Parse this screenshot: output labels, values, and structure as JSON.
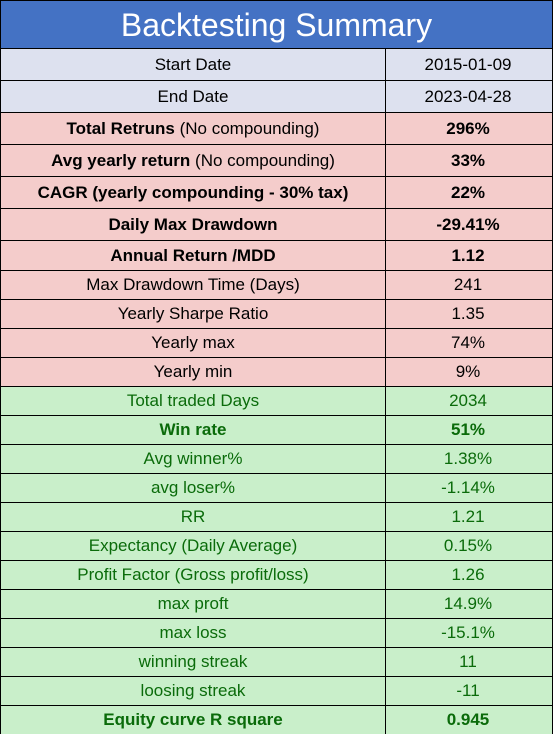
{
  "title": "Backtesting Summary",
  "rows": [
    {
      "label": "Start Date",
      "value": "2015-01-09"
    },
    {
      "label": "End Date",
      "value": "2023-04-28"
    },
    {
      "label_bold": "Total Retruns",
      "label_normal": " (No compounding)",
      "value": "296%"
    },
    {
      "label_bold": "Avg yearly return",
      "label_normal": " (No compounding)",
      "value": "33%"
    },
    {
      "label_bold": "CAGR (yearly compounding - 30% tax)",
      "label_normal": "",
      "value": "22%"
    },
    {
      "label_bold": "Daily Max Drawdown",
      "label_normal": "",
      "value": "-29.41%"
    },
    {
      "label_bold": "Annual Return /MDD",
      "label_normal": "",
      "value": "1.12"
    },
    {
      "label": "Max Drawdown Time (Days)",
      "value": "241"
    },
    {
      "label": "Yearly Sharpe Ratio",
      "value": "1.35"
    },
    {
      "label": "Yearly max",
      "value": "74%"
    },
    {
      "label": "Yearly min",
      "value": "9%"
    },
    {
      "label": "Total traded Days",
      "value": "2034"
    },
    {
      "label": "Win rate",
      "value": "51%"
    },
    {
      "label": "Avg winner%",
      "value": "1.38%"
    },
    {
      "label": "avg loser%",
      "value": "-1.14%"
    },
    {
      "label": "RR",
      "value": "1.21"
    },
    {
      "label": "Expectancy (Daily Average)",
      "value": "0.15%"
    },
    {
      "label": "Profit Factor (Gross profit/loss)",
      "value": "1.26"
    },
    {
      "label": "max proft",
      "value": "14.9%"
    },
    {
      "label": "max loss",
      "value": "-15.1%"
    },
    {
      "label": "winning streak",
      "value": "11"
    },
    {
      "label": "loosing streak",
      "value": "-11"
    },
    {
      "label": "Equity curve R square",
      "value": "0.945"
    }
  ]
}
